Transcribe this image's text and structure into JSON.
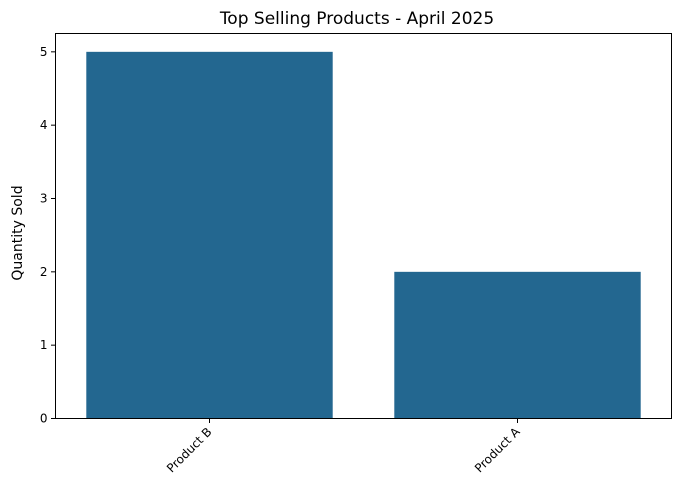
{
  "chart_data": {
    "type": "bar",
    "title": "Top Selling Products - April 2025",
    "xlabel": "",
    "ylabel": "Quantity Sold",
    "categories": [
      "Product B",
      "Product A"
    ],
    "values": [
      5,
      2
    ],
    "ylim": [
      0,
      5.25
    ],
    "yticks": [
      "0",
      "1",
      "2",
      "3",
      "4",
      "5"
    ],
    "bar_color": "#236790",
    "grid": false,
    "legend": "none"
  }
}
